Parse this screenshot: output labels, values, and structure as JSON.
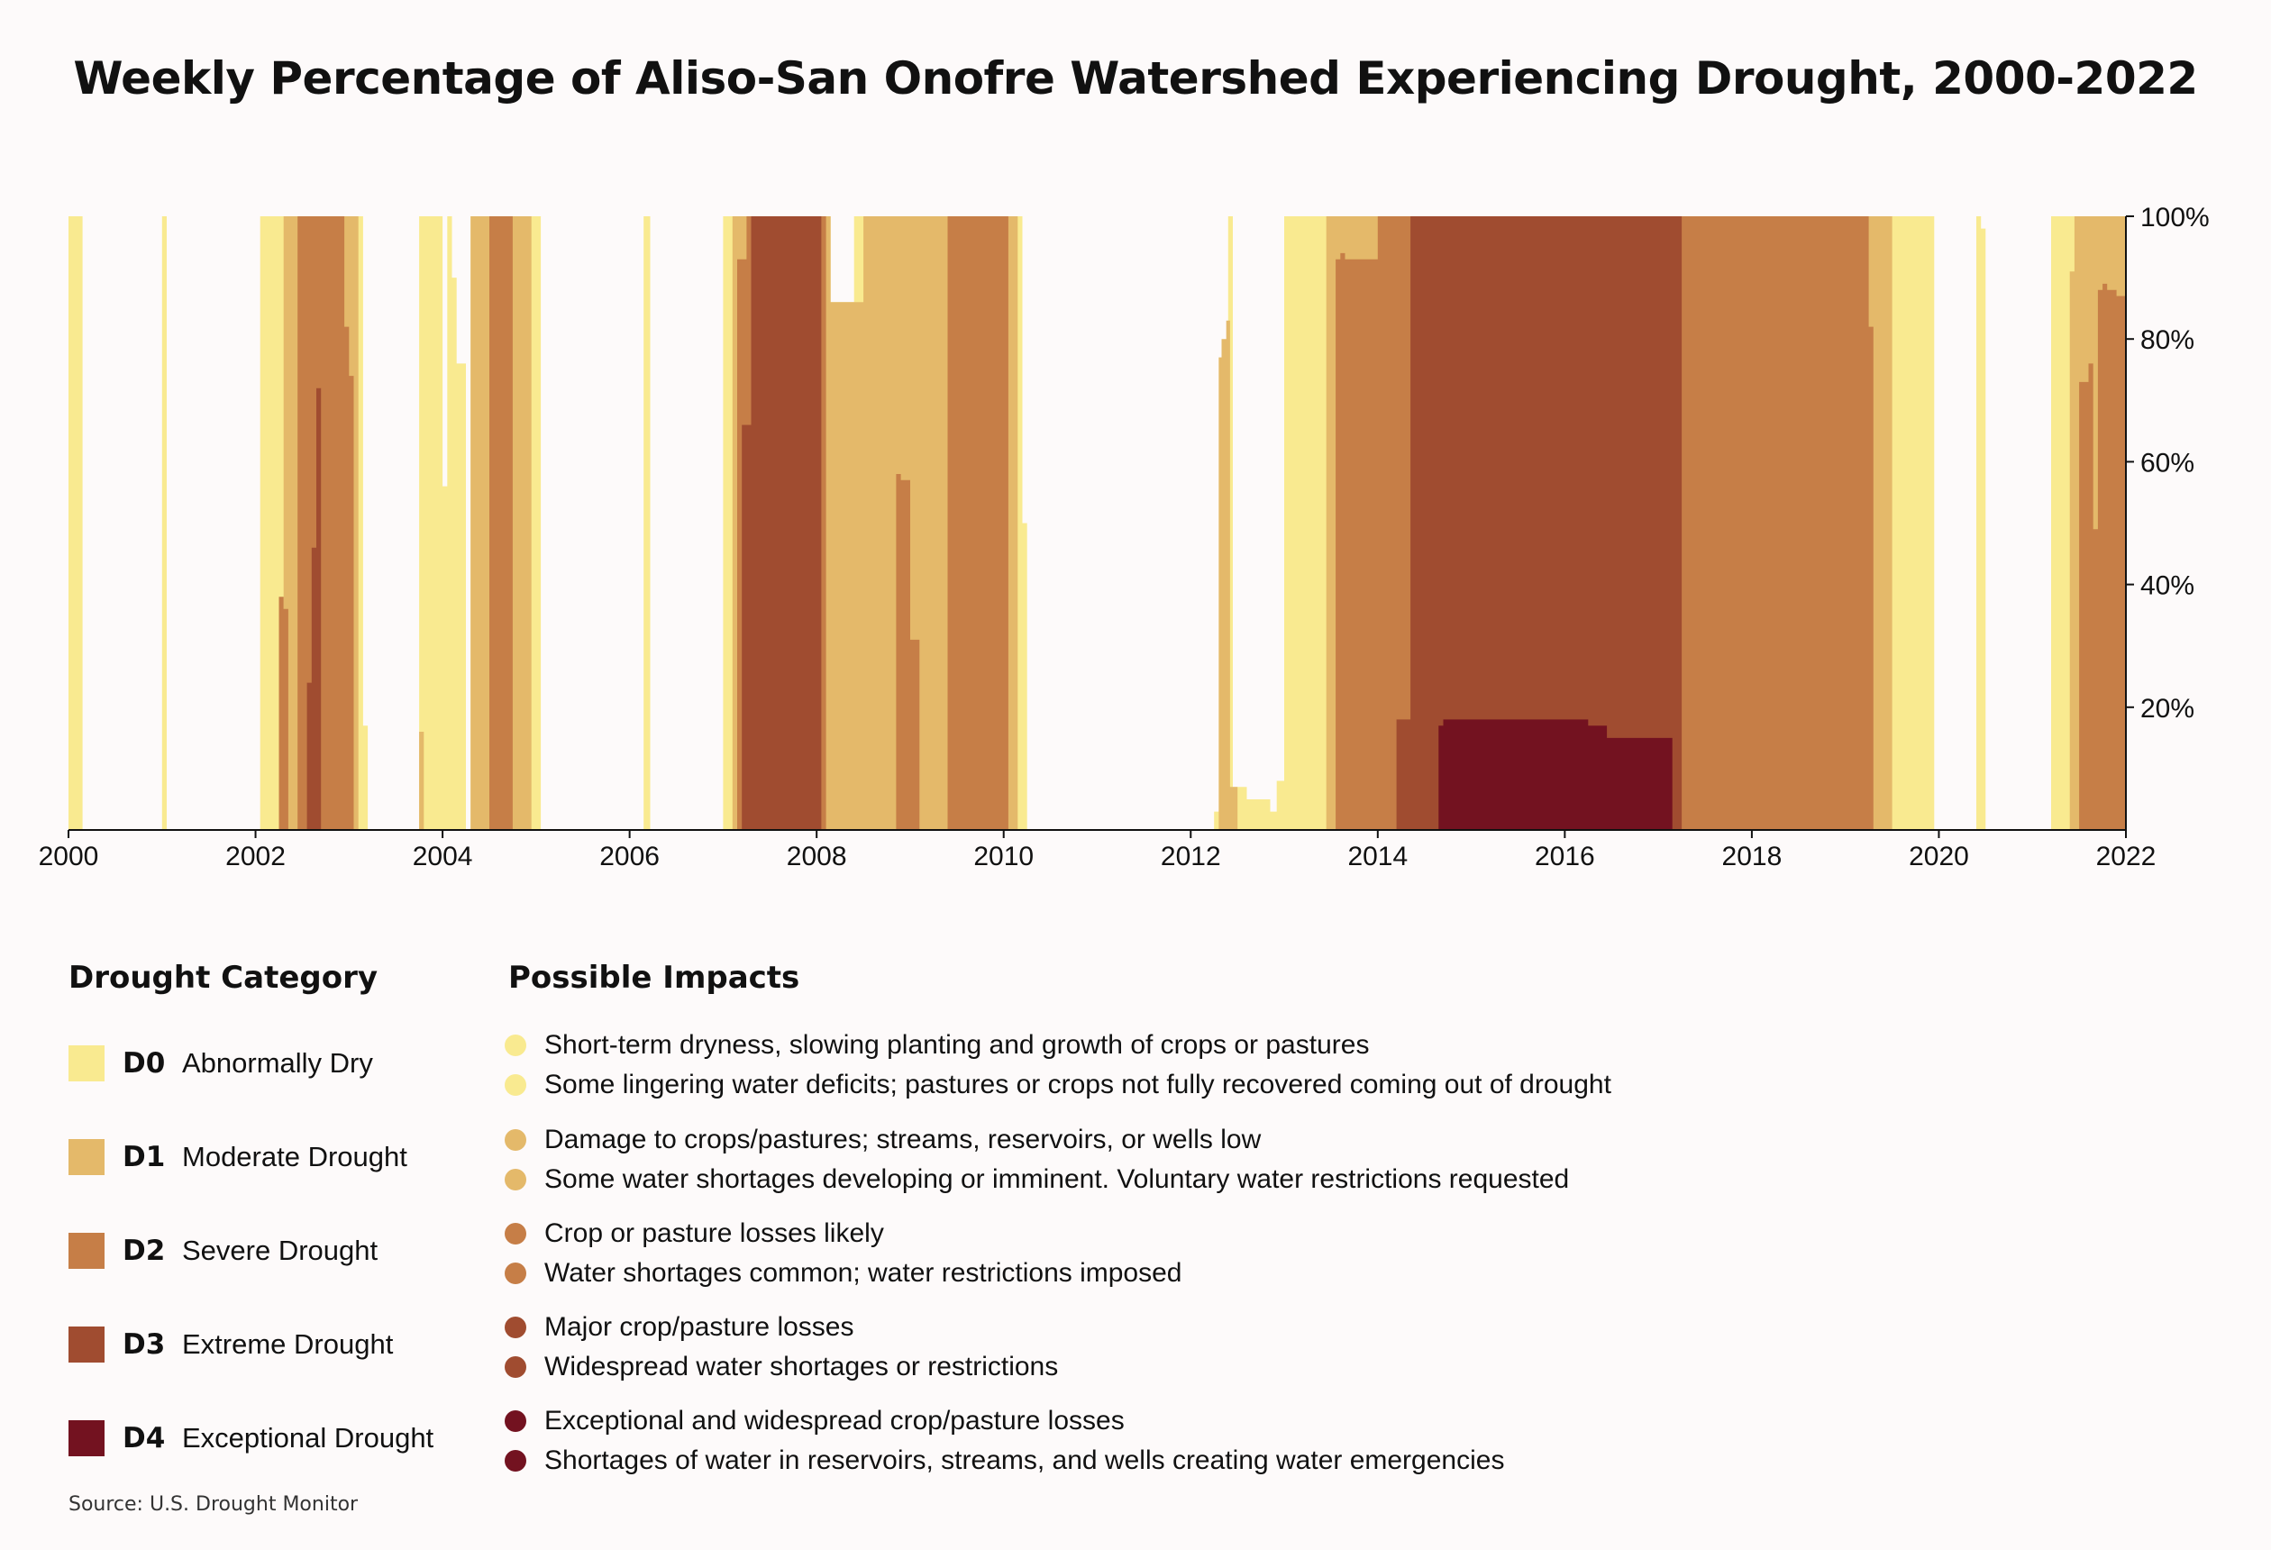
{
  "chart_data": {
    "type": "area",
    "title": "Weekly Percentage of Aliso-San Onofre Watershed Experiencing Drought, 2000-2022",
    "xlabel": "",
    "ylabel": "",
    "xlim": [
      2000,
      2022
    ],
    "ylim": [
      0,
      100
    ],
    "x_ticks": [
      "2000",
      "2002",
      "2004",
      "2006",
      "2008",
      "2010",
      "2012",
      "2014",
      "2016",
      "2018",
      "2020",
      "2022"
    ],
    "y_ticks": [
      "20%",
      "40%",
      "60%",
      "80%",
      "100%"
    ],
    "y_axis_side": "right",
    "note": "Stacked cumulative coverage per category (D0 = any drought, D4 = exceptional); values are estimated % of watershed, sampled at breakpoints in years and held constant until next point.",
    "series": [
      {
        "name": "D0",
        "color": "#f9ea90",
        "points": [
          [
            2000.0,
            100
          ],
          [
            2000.15,
            0
          ],
          [
            2001.0,
            100
          ],
          [
            2001.05,
            0
          ],
          [
            2002.05,
            100
          ],
          [
            2003.1,
            100
          ],
          [
            2003.15,
            17
          ],
          [
            2003.2,
            0
          ],
          [
            2003.75,
            100
          ],
          [
            2003.9,
            100
          ],
          [
            2004.0,
            56
          ],
          [
            2004.05,
            100
          ],
          [
            2004.1,
            90
          ],
          [
            2004.15,
            76
          ],
          [
            2004.25,
            0
          ],
          [
            2004.3,
            100
          ],
          [
            2005.0,
            100
          ],
          [
            2005.05,
            0
          ],
          [
            2006.15,
            100
          ],
          [
            2006.22,
            0
          ],
          [
            2007.0,
            100
          ],
          [
            2008.05,
            100
          ],
          [
            2008.15,
            86
          ],
          [
            2008.3,
            86
          ],
          [
            2008.4,
            100
          ],
          [
            2010.2,
            50
          ],
          [
            2010.25,
            0
          ],
          [
            2012.25,
            3
          ],
          [
            2012.3,
            77
          ],
          [
            2012.4,
            100
          ],
          [
            2012.45,
            7
          ],
          [
            2012.6,
            5
          ],
          [
            2012.85,
            3
          ],
          [
            2012.92,
            8
          ],
          [
            2013.0,
            100
          ],
          [
            2019.95,
            0
          ],
          [
            2020.4,
            100
          ],
          [
            2020.45,
            98
          ],
          [
            2020.5,
            0
          ],
          [
            2021.2,
            100
          ],
          [
            2022.0,
            100
          ]
        ]
      },
      {
        "name": "D1",
        "color": "#e4b96a",
        "points": [
          [
            2000.0,
            0
          ],
          [
            2002.05,
            0
          ],
          [
            2002.3,
            100
          ],
          [
            2003.1,
            0
          ],
          [
            2003.75,
            16
          ],
          [
            2003.8,
            0
          ],
          [
            2004.3,
            100
          ],
          [
            2004.95,
            0
          ],
          [
            2007.0,
            0
          ],
          [
            2007.1,
            100
          ],
          [
            2008.05,
            100
          ],
          [
            2008.15,
            86
          ],
          [
            2008.3,
            86
          ],
          [
            2008.5,
            100
          ],
          [
            2010.1,
            100
          ],
          [
            2010.15,
            0
          ],
          [
            2012.3,
            77
          ],
          [
            2012.33,
            80
          ],
          [
            2012.38,
            83
          ],
          [
            2012.42,
            7
          ],
          [
            2012.5,
            0
          ],
          [
            2013.45,
            100
          ],
          [
            2019.45,
            100
          ],
          [
            2019.5,
            0
          ],
          [
            2021.35,
            0
          ],
          [
            2021.4,
            91
          ],
          [
            2021.45,
            100
          ],
          [
            2022.0,
            100
          ]
        ]
      },
      {
        "name": "D2",
        "color": "#c67e47",
        "points": [
          [
            2000.0,
            0
          ],
          [
            2002.25,
            38
          ],
          [
            2002.3,
            36
          ],
          [
            2002.35,
            0
          ],
          [
            2002.45,
            100
          ],
          [
            2002.95,
            82
          ],
          [
            2003.0,
            74
          ],
          [
            2003.05,
            0
          ],
          [
            2004.5,
            100
          ],
          [
            2004.75,
            0
          ],
          [
            2007.15,
            93
          ],
          [
            2007.25,
            100
          ],
          [
            2008.05,
            100
          ],
          [
            2008.1,
            0
          ],
          [
            2008.85,
            58
          ],
          [
            2008.9,
            57
          ],
          [
            2009.0,
            31
          ],
          [
            2009.1,
            0
          ],
          [
            2009.4,
            100
          ],
          [
            2010.0,
            100
          ],
          [
            2010.05,
            0
          ],
          [
            2013.55,
            93
          ],
          [
            2013.6,
            94
          ],
          [
            2013.65,
            93
          ],
          [
            2014.0,
            100
          ],
          [
            2019.2,
            100
          ],
          [
            2019.25,
            82
          ],
          [
            2019.3,
            0
          ],
          [
            2021.5,
            73
          ],
          [
            2021.6,
            76
          ],
          [
            2021.65,
            49
          ],
          [
            2021.7,
            88
          ],
          [
            2021.75,
            89
          ],
          [
            2021.8,
            88
          ],
          [
            2021.9,
            87
          ],
          [
            2022.0,
            84
          ]
        ]
      },
      {
        "name": "D3",
        "color": "#a04c30",
        "points": [
          [
            2000.0,
            0
          ],
          [
            2002.55,
            24
          ],
          [
            2002.6,
            46
          ],
          [
            2002.65,
            72
          ],
          [
            2002.7,
            0
          ],
          [
            2007.2,
            66
          ],
          [
            2007.3,
            100
          ],
          [
            2008.0,
            100
          ],
          [
            2008.05,
            0
          ],
          [
            2014.2,
            18
          ],
          [
            2014.35,
            100
          ],
          [
            2017.2,
            100
          ],
          [
            2017.25,
            0
          ]
        ]
      },
      {
        "name": "D4",
        "color": "#731220",
        "points": [
          [
            2000.0,
            0
          ],
          [
            2014.65,
            17
          ],
          [
            2014.7,
            18
          ],
          [
            2016.25,
            17
          ],
          [
            2016.45,
            15
          ],
          [
            2017.15,
            0
          ]
        ]
      }
    ]
  },
  "legend": {
    "category_heading": "Drought Category",
    "impacts_heading": "Possible Impacts",
    "categories": [
      {
        "code": "D0",
        "name": "Abnormally Dry",
        "color": "#f9ea90",
        "impacts": [
          "Short-term dryness, slowing planting and growth of crops or pastures",
          "Some lingering water deficits; pastures or crops not fully recovered coming out of drought"
        ]
      },
      {
        "code": "D1",
        "name": "Moderate Drought",
        "color": "#e4b96a",
        "impacts": [
          "Damage to crops/pastures; streams, reservoirs, or wells low",
          "Some water shortages developing or imminent. Voluntary water restrictions requested"
        ]
      },
      {
        "code": "D2",
        "name": "Severe Drought",
        "color": "#c67e47",
        "impacts": [
          "Crop or pasture losses likely",
          "Water shortages common; water restrictions imposed"
        ]
      },
      {
        "code": "D3",
        "name": "Extreme Drought",
        "color": "#a04c30",
        "impacts": [
          "Major crop/pasture losses",
          "Widespread water shortages or restrictions"
        ]
      },
      {
        "code": "D4",
        "name": "Exceptional Drought",
        "color": "#731220",
        "impacts": [
          "Exceptional and widespread crop/pasture losses",
          "Shortages of water in reservoirs, streams, and wells creating water emergencies"
        ]
      }
    ]
  },
  "source": "Source: U.S. Drought Monitor"
}
